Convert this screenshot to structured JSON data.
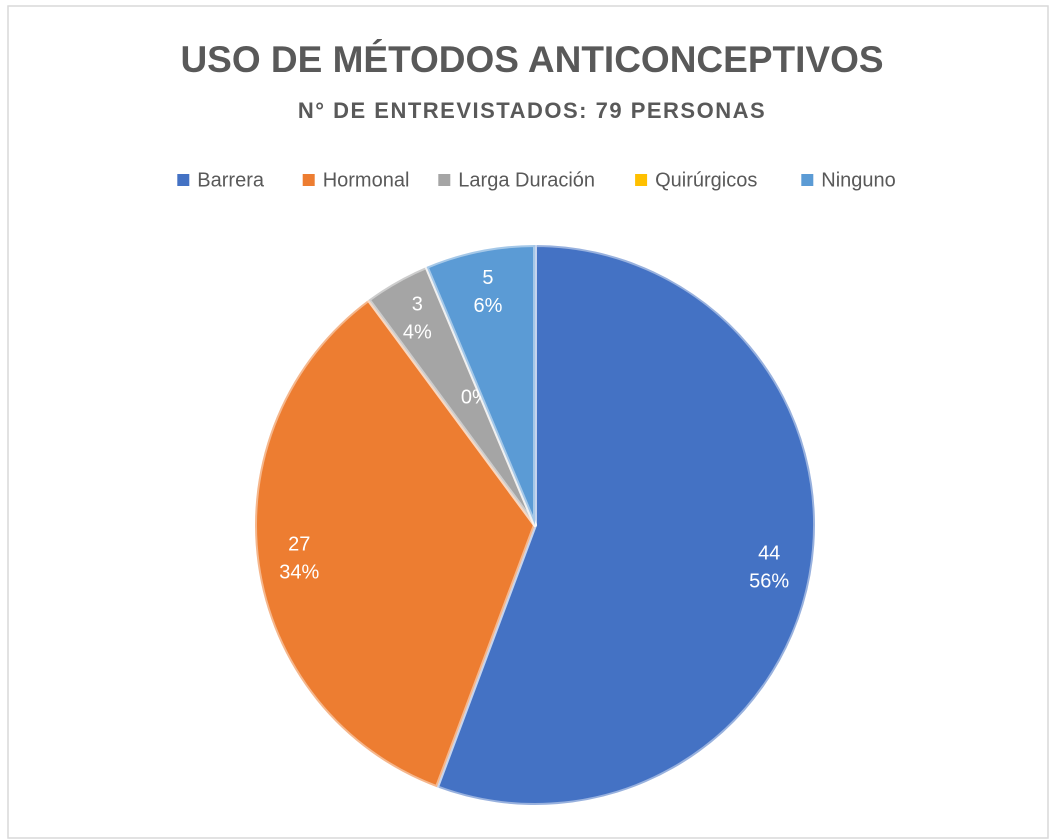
{
  "chart_data": {
    "type": "pie",
    "title": "USO DE MÉTODOS ANTICONCEPTIVOS",
    "subtitle": "N° DE ENTREVISTADOS: 79 PERSONAS",
    "categories": [
      "Barrera",
      "Hormonal",
      "Larga Duración",
      "Quirúrgicos",
      "Ninguno"
    ],
    "values": [
      44,
      27,
      3,
      0,
      5
    ],
    "value_labels": [
      "44",
      "27",
      "3",
      "-",
      "5"
    ],
    "percent_labels": [
      "56%",
      "34%",
      "4%",
      "0%",
      "6%"
    ],
    "colors": [
      "#4472c4",
      "#ed7d31",
      "#a5a5a5",
      "#ffc000",
      "#5b9bd5"
    ],
    "legend": "top"
  }
}
